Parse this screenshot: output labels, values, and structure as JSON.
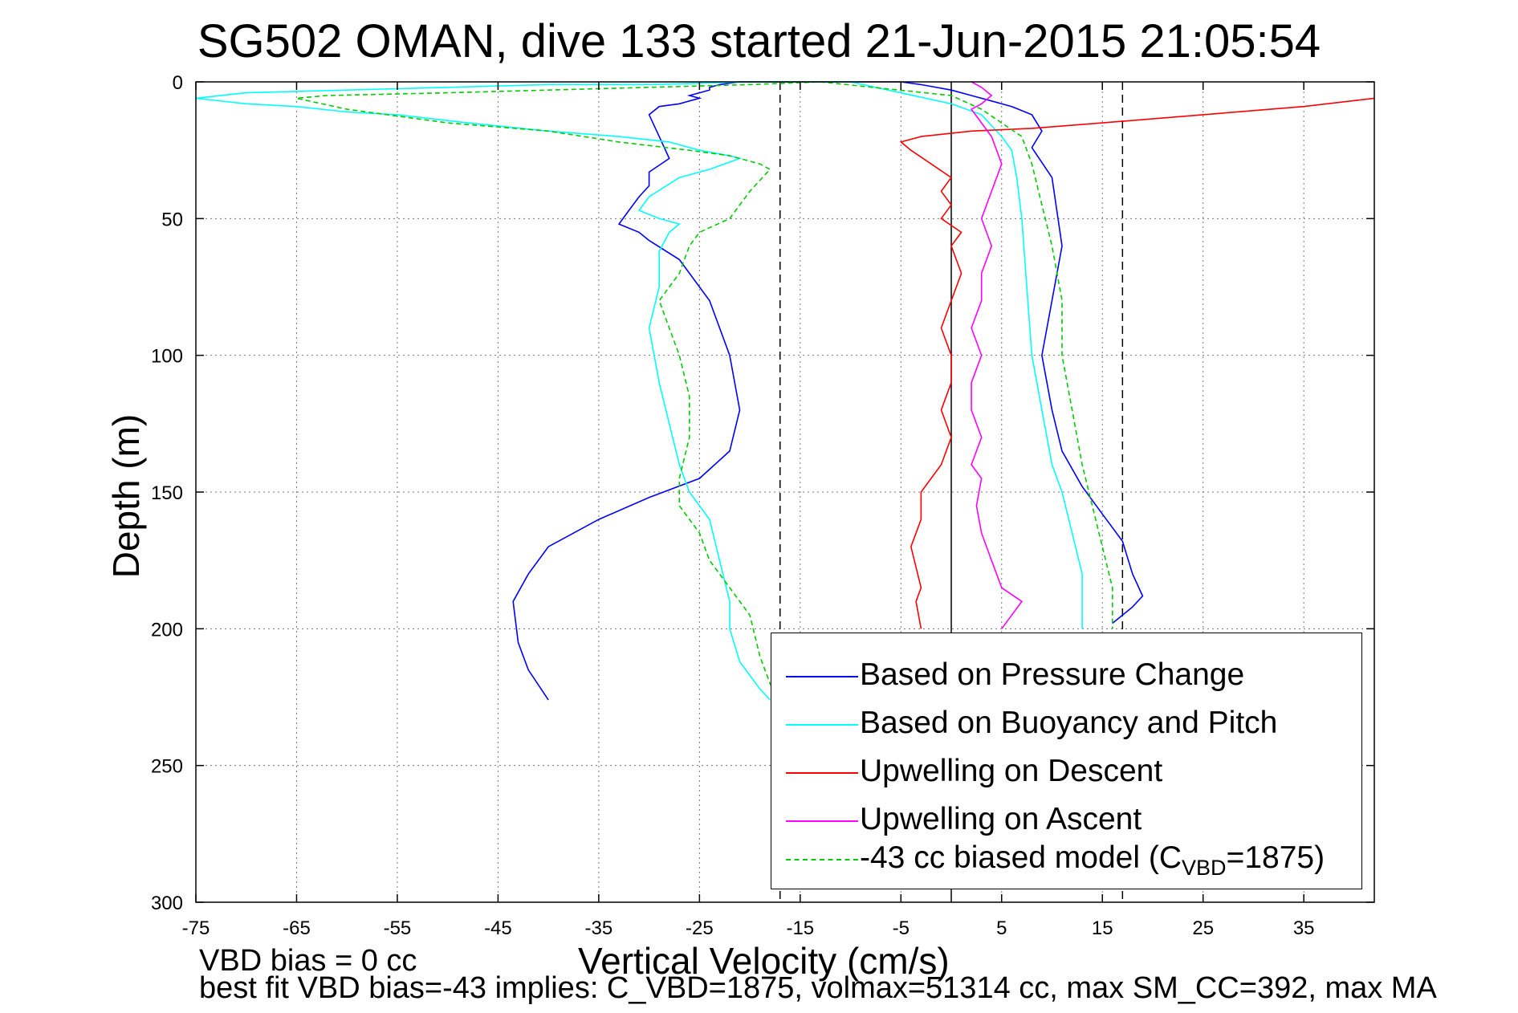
{
  "chart_data": {
    "type": "line",
    "title": "SG502 OMAN, dive 133 started 21-Jun-2015 21:05:54",
    "xlabel": "Vertical Velocity (cm/s)",
    "ylabel": "Depth (m)",
    "xlim": [
      -75,
      42
    ],
    "ylim": [
      0,
      300
    ],
    "y_reversed": true,
    "grid": true,
    "legend_position": "bottom-right",
    "xticks": [
      "-75",
      "-65",
      "-55",
      "-45",
      "-35",
      "-25",
      "-15",
      "-5",
      "5",
      "15",
      "25",
      "35"
    ],
    "yticks": [
      "0",
      "50",
      "100",
      "150",
      "200",
      "250",
      "300"
    ],
    "vertical_reference_lines": [
      {
        "x": 0,
        "style": "solid",
        "color": "#000000"
      },
      {
        "x": -17,
        "style": "dashed",
        "color": "#000000"
      },
      {
        "x": 17,
        "style": "dashed",
        "color": "#000000"
      }
    ],
    "series": [
      {
        "name": "Based on Pressure Change",
        "color": "#0000ff",
        "style": "solid",
        "x": [
          -40,
          -42,
          -43,
          -43.5,
          -42,
          -40,
          -35,
          -30,
          -25,
          -22,
          -21,
          -22,
          -24,
          -27,
          -30,
          -31,
          -33,
          -32,
          -31,
          -30,
          -30,
          -28,
          -29,
          -30,
          -29,
          -27,
          -26,
          -25,
          -26,
          -25,
          -24,
          -24,
          -23,
          -21,
          -19,
          -17,
          -15,
          -10,
          -7,
          -5,
          -3,
          0,
          2,
          4,
          6,
          8,
          9,
          8,
          10,
          11,
          9,
          10,
          11,
          13,
          15,
          17,
          18,
          19,
          18,
          16
        ],
        "y": [
          226,
          215,
          205,
          190,
          180,
          170,
          160,
          152,
          145,
          135,
          120,
          100,
          80,
          65,
          58,
          55,
          52,
          47,
          42,
          38,
          33,
          28,
          20,
          12,
          9,
          8,
          7,
          6,
          5,
          4,
          3,
          2,
          1,
          0,
          0,
          0,
          0,
          0,
          0,
          0,
          1,
          3,
          5,
          7,
          9,
          12,
          18,
          24,
          35,
          60,
          100,
          120,
          135,
          148,
          158,
          168,
          180,
          188,
          192,
          198
        ]
      },
      {
        "name": "Based on Buoyancy and Pitch",
        "color": "#00ffff",
        "style": "solid",
        "x": [
          -18,
          -19,
          -21,
          -22,
          -22,
          -23,
          -24,
          -26,
          -27,
          -28,
          -29,
          -30,
          -29,
          -29,
          -28,
          -27,
          -29,
          -31,
          -30,
          -27,
          -24,
          -21,
          -22,
          -25,
          -28,
          -33,
          -40,
          -48,
          -55,
          -60,
          -65,
          -70,
          -75,
          -70,
          -60,
          -50,
          -40,
          -30,
          -20,
          -10,
          0,
          3,
          4,
          5,
          6,
          6.5,
          7,
          7.5,
          8,
          9,
          10,
          11,
          12,
          13,
          13
        ],
        "y": [
          226,
          222,
          212,
          200,
          190,
          175,
          160,
          150,
          140,
          125,
          110,
          90,
          75,
          62,
          55,
          52,
          50,
          47,
          42,
          35,
          32,
          28,
          27,
          25,
          22,
          20,
          18,
          15,
          12,
          11,
          9,
          8,
          6,
          4,
          3,
          2,
          1,
          1,
          0,
          0,
          8,
          12,
          16,
          20,
          25,
          35,
          50,
          75,
          100,
          120,
          140,
          150,
          165,
          180,
          200
        ]
      },
      {
        "name": "Upwelling on Descent",
        "color": "#ff0000",
        "style": "solid",
        "x": [
          -3,
          -3.5,
          -3,
          -4,
          -3,
          -3,
          -2,
          -1,
          0,
          -1,
          0,
          0,
          -1,
          0,
          1,
          0,
          1,
          -1,
          0,
          -1,
          0,
          -2,
          -4,
          -5,
          -3,
          2,
          8,
          15,
          25,
          35,
          42
        ],
        "y": [
          200,
          190,
          185,
          170,
          160,
          150,
          145,
          140,
          130,
          120,
          110,
          100,
          90,
          80,
          70,
          60,
          55,
          50,
          45,
          40,
          35,
          30,
          25,
          22,
          20,
          18,
          17,
          15,
          12,
          9,
          6
        ]
      },
      {
        "name": "Upwelling on Ascent",
        "color": "#ff00ff",
        "style": "solid",
        "x": [
          5,
          6,
          7,
          5,
          4,
          3,
          2.5,
          3,
          2,
          3,
          2,
          2,
          3,
          2,
          3,
          3,
          4,
          3,
          4,
          5,
          4,
          3,
          2,
          3,
          4,
          3,
          2
        ],
        "y": [
          200,
          195,
          190,
          185,
          175,
          165,
          155,
          145,
          140,
          130,
          120,
          110,
          100,
          90,
          80,
          70,
          60,
          50,
          40,
          30,
          20,
          15,
          10,
          8,
          5,
          2,
          0
        ]
      },
      {
        "name": "-43 cc biased model (C_VBD=1875)",
        "color": "#00cc00",
        "style": "dashed",
        "x": [
          -17,
          -18,
          -19,
          -20,
          -22,
          -24,
          -25,
          -27,
          -27,
          -26,
          -26,
          -27,
          -28,
          -29,
          -27,
          -26,
          -25,
          -22,
          -20,
          -18,
          -19,
          -22,
          -26,
          -33,
          -40,
          -50,
          -60,
          -65,
          -62,
          -50,
          -40,
          -30,
          -20,
          -13,
          0,
          3,
          5,
          7,
          8,
          9,
          10,
          11,
          11,
          12,
          13,
          14,
          15,
          16,
          16
        ],
        "y": [
          226,
          220,
          210,
          195,
          185,
          175,
          165,
          155,
          145,
          130,
          115,
          100,
          90,
          80,
          70,
          60,
          55,
          50,
          40,
          32,
          30,
          27,
          25,
          22,
          18,
          15,
          10,
          6,
          5,
          4,
          3,
          2,
          1,
          0,
          5,
          10,
          15,
          20,
          30,
          45,
          60,
          80,
          100,
          120,
          140,
          155,
          170,
          185,
          200
        ]
      }
    ],
    "legend": [
      {
        "label": "Based on Pressure Change",
        "color": "#0000ff",
        "style": "solid"
      },
      {
        "label": "Based on Buoyancy and Pitch",
        "color": "#00ffff",
        "style": "solid"
      },
      {
        "label": "Upwelling on Descent",
        "color": "#ff0000",
        "style": "solid"
      },
      {
        "label": "Upwelling on Ascent",
        "color": "#ff00ff",
        "style": "solid"
      },
      {
        "label_main": "-43 cc biased model (C",
        "label_sub": "VBD",
        "label_tail": "=1875)",
        "color": "#00cc00",
        "style": "dashed"
      }
    ]
  },
  "footer": {
    "line1": "VBD bias = 0 cc",
    "line2": "best fit VBD bias=-43 implies: C_VBD=1875, volmax=51314 cc, max SM_CC=392, max MA"
  }
}
